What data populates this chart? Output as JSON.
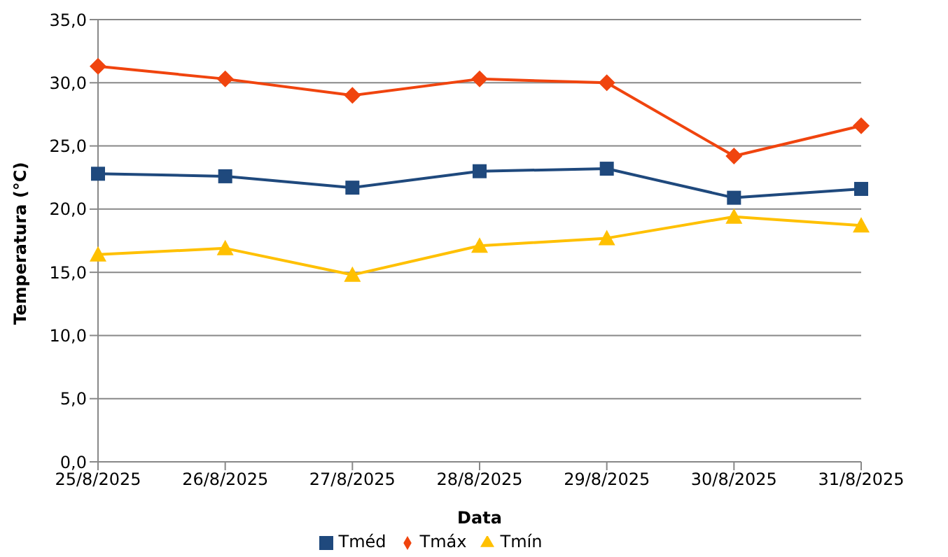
{
  "chart_data": {
    "type": "line",
    "xlabel": "Data",
    "ylabel": "Temperatura (°C)",
    "categories": [
      "25/8/2025",
      "26/8/2025",
      "27/8/2025",
      "28/8/2025",
      "29/8/2025",
      "30/8/2025",
      "31/8/2025"
    ],
    "series": [
      {
        "name": "Tméd",
        "color": "#1f497d",
        "marker": "square",
        "values": [
          22.8,
          22.6,
          21.7,
          23.0,
          23.2,
          20.9,
          21.6
        ]
      },
      {
        "name": "Tmáx",
        "color": "#f0440e",
        "marker": "diamond",
        "values": [
          31.3,
          30.3,
          29.0,
          30.3,
          30.0,
          24.2,
          26.6
        ]
      },
      {
        "name": "Tmín",
        "color": "#ffc000",
        "marker": "triangle",
        "values": [
          16.4,
          16.9,
          14.8,
          17.1,
          17.7,
          19.4,
          18.7
        ]
      }
    ],
    "ylim": [
      0,
      35
    ],
    "yticks": [
      {
        "value": 0,
        "label": "0,0"
      },
      {
        "value": 5,
        "label": "5,0"
      },
      {
        "value": 10,
        "label": "10,0"
      },
      {
        "value": 15,
        "label": "15,0"
      },
      {
        "value": 20,
        "label": "20,0"
      },
      {
        "value": 25,
        "label": "25,0"
      },
      {
        "value": 30,
        "label": "30,0"
      },
      {
        "value": 35,
        "label": "35,0"
      }
    ],
    "grid": "y",
    "legend": "bottom",
    "line_style": "solid"
  }
}
